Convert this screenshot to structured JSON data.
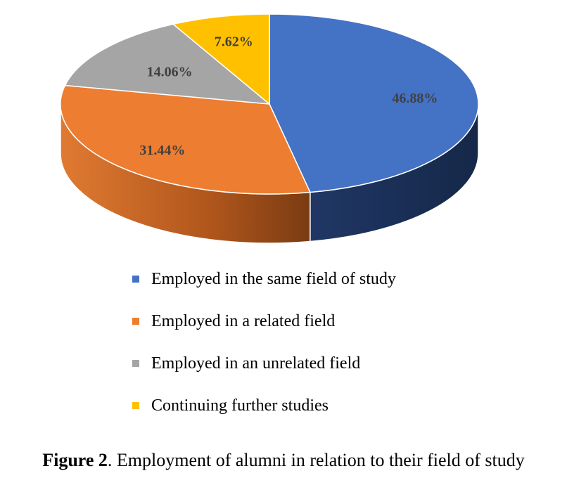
{
  "chart_data": {
    "type": "pie",
    "style": "3d",
    "legend_position": "bottom",
    "categories": [
      "Employed in the same field of study",
      "Employed in a related field",
      "Employed in an unrelated field",
      "Continuing further studies"
    ],
    "values": [
      46.88,
      31.44,
      14.06,
      7.62
    ],
    "labels": [
      "46.88%",
      "31.44%",
      "14.06%",
      "7.62%"
    ],
    "colors": [
      "#4472C4",
      "#ED7D31",
      "#A5A5A5",
      "#FFC000"
    ]
  },
  "caption": {
    "prefix": "Figure 2",
    "text": ". Employment of alumni in relation to their field of study"
  }
}
